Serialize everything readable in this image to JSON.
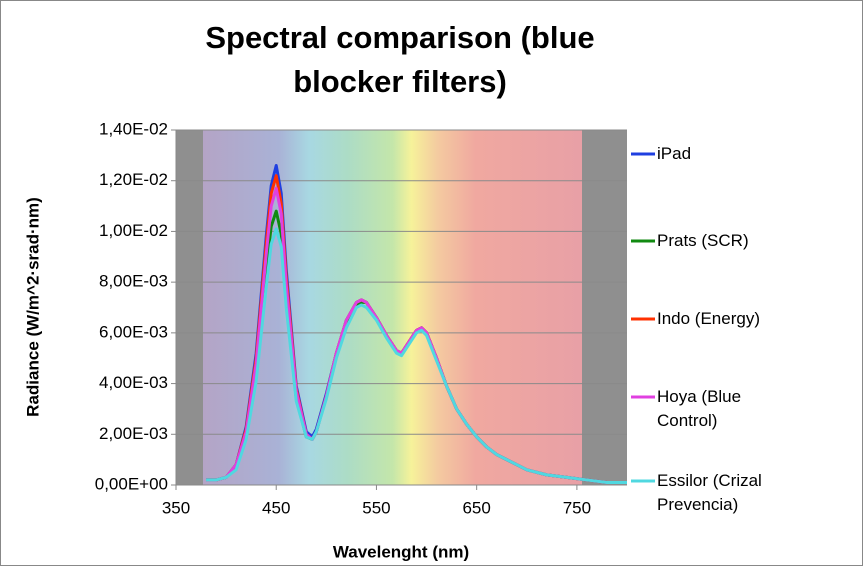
{
  "chart_data": {
    "type": "line",
    "title": "Spectral comparison (blue blocker filters)",
    "x_label": "Wavelenght (nm)",
    "y_label": "Radiance (W/m^2·srad·nm)",
    "x": [
      380,
      390,
      400,
      410,
      420,
      430,
      440,
      445,
      450,
      455,
      460,
      470,
      480,
      486,
      490,
      500,
      510,
      520,
      530,
      535,
      540,
      550,
      560,
      570,
      575,
      580,
      590,
      595,
      600,
      610,
      620,
      630,
      640,
      650,
      660,
      670,
      680,
      690,
      700,
      720,
      740,
      760,
      780,
      800
    ],
    "series": [
      {
        "name": "iPad",
        "color": "#1f3fe0",
        "values": [
          0.0002,
          0.0002,
          0.0003,
          0.0008,
          0.0023,
          0.0052,
          0.0098,
          0.0118,
          0.0126,
          0.0115,
          0.0085,
          0.0039,
          0.0021,
          0.0019,
          0.0022,
          0.0036,
          0.0052,
          0.0065,
          0.0072,
          0.0073,
          0.0072,
          0.0066,
          0.0059,
          0.0053,
          0.0052,
          0.0055,
          0.0061,
          0.0062,
          0.006,
          0.005,
          0.0039,
          0.003,
          0.0024,
          0.0019,
          0.0015,
          0.0012,
          0.001,
          0.0008,
          0.0006,
          0.0004,
          0.0003,
          0.0002,
          0.0001,
          0.0001
        ]
      },
      {
        "name": "Prats (SCR)",
        "color": "#118a11",
        "values": [
          0.0002,
          0.0002,
          0.0003,
          0.0007,
          0.002,
          0.0045,
          0.0085,
          0.0102,
          0.0108,
          0.0099,
          0.0073,
          0.0034,
          0.0019,
          0.0018,
          0.0021,
          0.0035,
          0.0051,
          0.0064,
          0.0071,
          0.0072,
          0.0072,
          0.0066,
          0.0059,
          0.0053,
          0.0052,
          0.0055,
          0.0061,
          0.0062,
          0.006,
          0.005,
          0.0039,
          0.003,
          0.0024,
          0.0019,
          0.0015,
          0.0012,
          0.001,
          0.0008,
          0.0006,
          0.0004,
          0.0003,
          0.0002,
          0.0001,
          0.0001
        ]
      },
      {
        "name": "Indo (Energy)",
        "color": "#ff3000",
        "values": [
          0.0002,
          0.0002,
          0.0003,
          0.0008,
          0.0022,
          0.005,
          0.0095,
          0.0115,
          0.0122,
          0.0111,
          0.0082,
          0.0038,
          0.002,
          0.0018,
          0.0021,
          0.0035,
          0.0052,
          0.0065,
          0.0072,
          0.0073,
          0.0072,
          0.0066,
          0.0059,
          0.0053,
          0.0052,
          0.0055,
          0.0061,
          0.0062,
          0.006,
          0.005,
          0.0039,
          0.003,
          0.0024,
          0.0019,
          0.0015,
          0.0012,
          0.001,
          0.0008,
          0.0006,
          0.0004,
          0.0003,
          0.0002,
          0.0001,
          0.0001
        ]
      },
      {
        "name": "Hoya (Blue Control)",
        "color": "#e040e0",
        "values": [
          0.0002,
          0.0002,
          0.0003,
          0.0008,
          0.0021,
          0.0048,
          0.0091,
          0.011,
          0.0117,
          0.0107,
          0.0079,
          0.0037,
          0.002,
          0.0018,
          0.0021,
          0.0035,
          0.0052,
          0.0065,
          0.0072,
          0.0073,
          0.0072,
          0.0066,
          0.0059,
          0.0053,
          0.0052,
          0.0055,
          0.0061,
          0.0062,
          0.006,
          0.005,
          0.0039,
          0.003,
          0.0024,
          0.0019,
          0.0015,
          0.0012,
          0.001,
          0.0008,
          0.0006,
          0.0004,
          0.0003,
          0.0002,
          0.0001,
          0.0001
        ]
      },
      {
        "name": "Essilor (Crizal Prevencia)",
        "color": "#50d8e0",
        "values": [
          0.0002,
          0.0002,
          0.0003,
          0.0006,
          0.0018,
          0.0041,
          0.0078,
          0.0095,
          0.0101,
          0.0094,
          0.007,
          0.0033,
          0.0019,
          0.0018,
          0.0021,
          0.0034,
          0.005,
          0.0062,
          0.007,
          0.0071,
          0.007,
          0.0065,
          0.0058,
          0.0052,
          0.0051,
          0.0054,
          0.006,
          0.0061,
          0.0059,
          0.0049,
          0.0039,
          0.003,
          0.0024,
          0.0019,
          0.0015,
          0.0012,
          0.001,
          0.0008,
          0.0006,
          0.0004,
          0.0003,
          0.0002,
          0.0001,
          0.0001
        ]
      }
    ],
    "xlim": [
      350,
      800
    ],
    "xticks": [
      350,
      450,
      550,
      650,
      750
    ],
    "ylim": [
      0,
      0.014
    ],
    "yticks": [
      {
        "value": 0,
        "label": "0,00E+00"
      },
      {
        "value": 0.002,
        "label": "2,00E-03"
      },
      {
        "value": 0.004,
        "label": "4,00E-03"
      },
      {
        "value": 0.006,
        "label": "6,00E-03"
      },
      {
        "value": 0.008,
        "label": "8,00E-03"
      },
      {
        "value": 0.01,
        "label": "1,00E-02"
      },
      {
        "value": 0.012,
        "label": "1,20E-02"
      },
      {
        "value": 0.014,
        "label": "1,40E-02"
      }
    ],
    "grid": true
  }
}
